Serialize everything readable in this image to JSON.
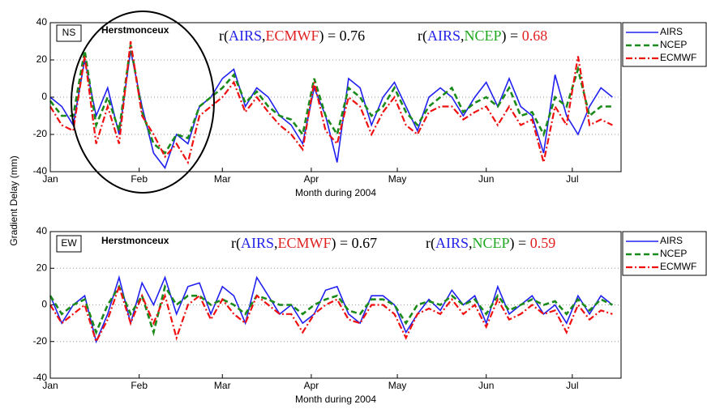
{
  "chart_data": [
    {
      "type": "line",
      "panel_label": "NS",
      "site": "Herstmonceux",
      "ylabel": "Gradient Delay (mm)",
      "xlabel": "Month during 2004",
      "annotations": [
        {
          "parts": [
            {
              "text": "r(",
              "color": "#000000"
            },
            {
              "text": "AIRS",
              "color": "#2424e8"
            },
            {
              "text": ",",
              "color": "#000000"
            },
            {
              "text": "ECMWF",
              "color": "#e02020"
            },
            {
              "text": ") = 0.76",
              "color": "#000000"
            }
          ]
        },
        {
          "parts": [
            {
              "text": "r(",
              "color": "#000000"
            },
            {
              "text": "AIRS",
              "color": "#2424e8"
            },
            {
              "text": ",",
              "color": "#000000"
            },
            {
              "text": "NCEP",
              "color": "#1fa81f"
            },
            {
              "text": ") = ",
              "color": "#000000"
            },
            {
              "text": "0.68",
              "color": "#e02020"
            }
          ]
        }
      ],
      "x": [
        1,
        5,
        9,
        13,
        17,
        21,
        25,
        29,
        33,
        37,
        41,
        45,
        49,
        53,
        57,
        61,
        65,
        69,
        73,
        77,
        81,
        85,
        89,
        93,
        97,
        101,
        105,
        109,
        113,
        117,
        121,
        125,
        129,
        133,
        137,
        141,
        145,
        149,
        153,
        157,
        161,
        165,
        169,
        173,
        177,
        181,
        185,
        189,
        193,
        197
      ],
      "series": [
        {
          "name": "AIRS",
          "color": "#2020f0",
          "style": "solid",
          "values": [
            0,
            -5,
            -15,
            20,
            -10,
            5,
            -20,
            25,
            -5,
            -30,
            -38,
            -20,
            -25,
            -5,
            0,
            10,
            15,
            -5,
            5,
            0,
            -10,
            -15,
            -25,
            5,
            -10,
            -35,
            10,
            5,
            -15,
            0,
            8,
            -5,
            -18,
            0,
            5,
            0,
            -10,
            0,
            8,
            -5,
            10,
            -5,
            -10,
            -30,
            12,
            -10,
            -20,
            -5,
            5,
            0
          ]
        },
        {
          "name": "NCEP",
          "color": "#1a8a1a",
          "style": "dashed",
          "values": [
            -2,
            -10,
            -10,
            25,
            -15,
            0,
            -18,
            28,
            -8,
            -25,
            -30,
            -20,
            -22,
            -5,
            0,
            5,
            12,
            -3,
            3,
            -5,
            -10,
            -12,
            -20,
            10,
            -10,
            -20,
            5,
            0,
            -10,
            -5,
            5,
            -8,
            -15,
            -5,
            0,
            5,
            -8,
            -3,
            0,
            -5,
            5,
            -10,
            -8,
            -20,
            0,
            -5,
            15,
            -10,
            -5,
            -5
          ]
        },
        {
          "name": "ECMWF",
          "color": "#f01010",
          "style": "dashdot",
          "values": [
            -5,
            -15,
            -18,
            22,
            -25,
            -5,
            -25,
            30,
            -10,
            -20,
            -32,
            -25,
            -35,
            -10,
            -5,
            0,
            8,
            -8,
            0,
            -8,
            -15,
            -20,
            -28,
            8,
            -18,
            -25,
            0,
            -5,
            -20,
            -8,
            0,
            -15,
            -20,
            -8,
            -5,
            -5,
            -12,
            -8,
            -5,
            -15,
            -5,
            -15,
            -12,
            -35,
            -5,
            -15,
            22,
            -15,
            -12,
            -15
          ]
        }
      ],
      "xlim": [
        1,
        200
      ],
      "xticks": [
        {
          "value": 1,
          "label": "Jan"
        },
        {
          "value": 32,
          "label": "Feb"
        },
        {
          "value": 61,
          "label": "Mar"
        },
        {
          "value": 92,
          "label": "Apr"
        },
        {
          "value": 122,
          "label": "May"
        },
        {
          "value": 153,
          "label": "Jun"
        },
        {
          "value": 183,
          "label": "Jul"
        }
      ],
      "ylim": [
        -40,
        40
      ],
      "yticks": [
        -40,
        -20,
        0,
        20,
        40
      ],
      "grid": true,
      "legend": "right"
    },
    {
      "type": "line",
      "panel_label": "EW",
      "site": "Herstmonceux",
      "xlabel": "Month during 2004",
      "annotations": [
        {
          "parts": [
            {
              "text": "r(",
              "color": "#000000"
            },
            {
              "text": "AIRS",
              "color": "#2424e8"
            },
            {
              "text": ",",
              "color": "#000000"
            },
            {
              "text": "ECMWF",
              "color": "#e02020"
            },
            {
              "text": ") = 0.67",
              "color": "#000000"
            }
          ]
        },
        {
          "parts": [
            {
              "text": "r(",
              "color": "#000000"
            },
            {
              "text": "AIRS",
              "color": "#2424e8"
            },
            {
              "text": ",",
              "color": "#000000"
            },
            {
              "text": "NCEP",
              "color": "#1fa81f"
            },
            {
              "text": ") = ",
              "color": "#000000"
            },
            {
              "text": "0.59",
              "color": "#e02020"
            }
          ]
        }
      ],
      "x": [
        1,
        5,
        9,
        13,
        17,
        21,
        25,
        29,
        33,
        37,
        41,
        45,
        49,
        53,
        57,
        61,
        65,
        69,
        73,
        77,
        81,
        85,
        89,
        93,
        97,
        101,
        105,
        109,
        113,
        117,
        121,
        125,
        129,
        133,
        137,
        141,
        145,
        149,
        153,
        157,
        161,
        165,
        169,
        173,
        177,
        181,
        185,
        189,
        193,
        197
      ],
      "series": [
        {
          "name": "AIRS",
          "color": "#2020f0",
          "style": "solid",
          "values": [
            5,
            -10,
            0,
            5,
            -20,
            -5,
            15,
            -10,
            12,
            0,
            15,
            -5,
            10,
            12,
            -5,
            10,
            5,
            -10,
            15,
            5,
            -5,
            0,
            -10,
            -5,
            8,
            10,
            -5,
            -10,
            5,
            5,
            0,
            -15,
            -5,
            3,
            -3,
            8,
            0,
            5,
            -10,
            10,
            -5,
            0,
            5,
            -5,
            0,
            -10,
            5,
            -5,
            5,
            0
          ]
        },
        {
          "name": "NCEP",
          "color": "#1a8a1a",
          "style": "dashed",
          "values": [
            5,
            -5,
            0,
            3,
            -15,
            0,
            10,
            -5,
            5,
            -15,
            10,
            0,
            5,
            5,
            0,
            3,
            0,
            -5,
            5,
            3,
            0,
            0,
            -5,
            0,
            3,
            5,
            -3,
            -5,
            3,
            3,
            0,
            -10,
            0,
            2,
            0,
            5,
            0,
            3,
            -5,
            5,
            -3,
            0,
            3,
            0,
            2,
            -5,
            3,
            -3,
            3,
            0
          ]
        },
        {
          "name": "ECMWF",
          "color": "#f01010",
          "style": "dashdot",
          "values": [
            0,
            -10,
            -5,
            0,
            -20,
            -8,
            10,
            -10,
            5,
            -10,
            5,
            -18,
            0,
            5,
            -8,
            3,
            -5,
            -10,
            5,
            0,
            -5,
            -5,
            -15,
            -5,
            0,
            3,
            -8,
            -10,
            0,
            0,
            -5,
            -18,
            -5,
            -2,
            -5,
            3,
            -5,
            0,
            -12,
            3,
            -8,
            -5,
            0,
            -5,
            -3,
            -15,
            0,
            -8,
            -3,
            -5
          ]
        }
      ],
      "xlim": [
        1,
        200
      ],
      "xticks": [
        {
          "value": 1,
          "label": "Jan"
        },
        {
          "value": 32,
          "label": "Feb"
        },
        {
          "value": 61,
          "label": "Mar"
        },
        {
          "value": 92,
          "label": "Apr"
        },
        {
          "value": 122,
          "label": "May"
        },
        {
          "value": 153,
          "label": "Jun"
        },
        {
          "value": 183,
          "label": "Jul"
        }
      ],
      "ylim": [
        -40,
        40
      ],
      "yticks": [
        -40,
        -20,
        0,
        20,
        40
      ],
      "grid": true,
      "legend": "right"
    }
  ]
}
